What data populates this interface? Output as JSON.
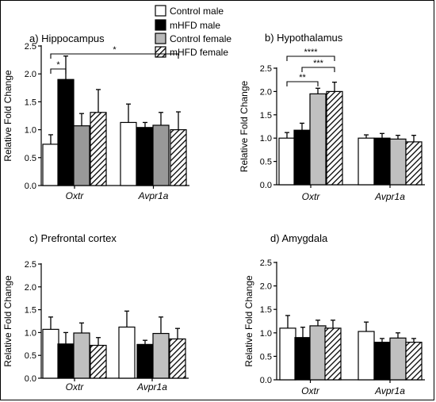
{
  "legend": [
    {
      "name": "Control male",
      "fill": "#ffffff"
    },
    {
      "name": "mHFD male",
      "fill": "#000000"
    },
    {
      "name": "Control female",
      "fill": "#b8b8b8"
    },
    {
      "name": "mHFD female",
      "fill": "hatch"
    }
  ],
  "colors": {
    "control_female_a": "#999999",
    "control_female": "#c0c0c0",
    "bar_stroke": "#000000"
  },
  "chart_data": [
    {
      "type": "bar",
      "title": "a) Hippocampus",
      "ylabel": "Relative Fold Change",
      "ylim": [
        0,
        2.5
      ],
      "yticks": [
        "0.0",
        "0.5",
        "1.0",
        "1.5",
        "2.0",
        "2.5"
      ],
      "categories": [
        "Oxtr",
        "Avpr1a"
      ],
      "series": [
        {
          "name": "Control male",
          "values": [
            0.74,
            1.13
          ],
          "errors": [
            0.17,
            0.33
          ]
        },
        {
          "name": "mHFD male",
          "values": [
            1.9,
            1.04
          ],
          "errors": [
            0.42,
            0.09
          ]
        },
        {
          "name": "Control female",
          "values": [
            1.07,
            1.08
          ],
          "errors": [
            0.22,
            0.23
          ]
        },
        {
          "name": "mHFD female",
          "values": [
            1.31,
            1.0
          ],
          "errors": [
            0.41,
            0.32
          ]
        }
      ],
      "annotations": [
        {
          "label": "*",
          "from": [
            0,
            0
          ],
          "to": [
            0,
            1
          ]
        },
        {
          "label": "*",
          "from": [
            0,
            0
          ],
          "to": [
            1,
            3
          ]
        }
      ]
    },
    {
      "type": "bar",
      "title": "b) Hypothalamus",
      "ylabel": "Relative Fold Change",
      "ylim": [
        0,
        2.5
      ],
      "yticks": [
        "0.0",
        "0.5",
        "1.0",
        "1.5",
        "2.0",
        "2.5"
      ],
      "categories": [
        "Oxtr",
        "Avpr1a"
      ],
      "series": [
        {
          "name": "Control male",
          "values": [
            1.0,
            1.0
          ],
          "errors": [
            0.12,
            0.07
          ]
        },
        {
          "name": "mHFD male",
          "values": [
            1.17,
            1.0
          ],
          "errors": [
            0.15,
            0.1
          ]
        },
        {
          "name": "Control female",
          "values": [
            1.95,
            0.98
          ],
          "errors": [
            0.12,
            0.08
          ]
        },
        {
          "name": "mHFD female",
          "values": [
            2.0,
            0.92
          ],
          "errors": [
            0.2,
            0.14
          ]
        }
      ],
      "annotations": [
        {
          "label": "**",
          "from": [
            0,
            0
          ],
          "to": [
            0,
            2
          ]
        },
        {
          "label": "***",
          "from": [
            0,
            1
          ],
          "to": [
            0,
            3
          ]
        },
        {
          "label": "****",
          "from": [
            0,
            0
          ],
          "to": [
            0,
            3
          ]
        }
      ]
    },
    {
      "type": "bar",
      "title": "c) Prefrontal cortex",
      "ylabel": "Relative Fold Change",
      "ylim": [
        0,
        2.5
      ],
      "yticks": [
        "0.0",
        "0.5",
        "1.0",
        "1.5",
        "2.0",
        "2.5"
      ],
      "categories": [
        "Oxtr",
        "Avpr1a"
      ],
      "series": [
        {
          "name": "Control male",
          "values": [
            1.07,
            1.12
          ],
          "errors": [
            0.27,
            0.35
          ]
        },
        {
          "name": "mHFD male",
          "values": [
            0.75,
            0.74
          ],
          "errors": [
            0.25,
            0.09
          ]
        },
        {
          "name": "Control female",
          "values": [
            0.99,
            0.98
          ],
          "errors": [
            0.22,
            0.36
          ]
        },
        {
          "name": "mHFD female",
          "values": [
            0.72,
            0.86
          ],
          "errors": [
            0.17,
            0.23
          ]
        }
      ],
      "annotations": []
    },
    {
      "type": "bar",
      "title": "d) Amygdala",
      "ylabel": "Relative Fold Change",
      "ylim": [
        0,
        2.5
      ],
      "yticks": [
        "0.0",
        "0.5",
        "1.0",
        "1.5",
        "2.0",
        "2.5"
      ],
      "categories": [
        "Oxtr",
        "Avpr1a"
      ],
      "series": [
        {
          "name": "Control male",
          "values": [
            1.1,
            1.03
          ],
          "errors": [
            0.27,
            0.2
          ]
        },
        {
          "name": "mHFD male",
          "values": [
            0.9,
            0.8
          ],
          "errors": [
            0.22,
            0.08
          ]
        },
        {
          "name": "Control female",
          "values": [
            1.15,
            0.89
          ],
          "errors": [
            0.12,
            0.11
          ]
        },
        {
          "name": "mHFD female",
          "values": [
            1.1,
            0.8
          ],
          "errors": [
            0.17,
            0.08
          ]
        }
      ],
      "annotations": []
    }
  ]
}
